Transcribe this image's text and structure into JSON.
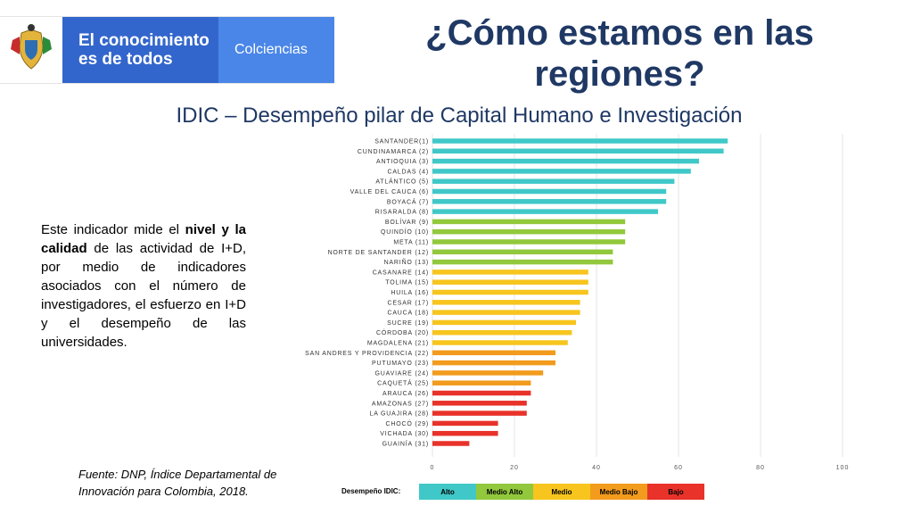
{
  "header": {
    "logo_line1": "El conocimiento",
    "logo_line2": "es de todos",
    "logo_brand": "Colciencias",
    "title": "¿Cómo estamos en las regiones?",
    "subtitle": "IDIC – Desempeño pilar de Capital Humano e Investigación"
  },
  "description": {
    "part1": "Este indicador mide el ",
    "bold1": "nivel y la calidad",
    "part2": " de las actividad de I+D, por medio de indicadores asociados con el número de investigadores, el esfuerzo en I+D y el desempeño de las universidades."
  },
  "source": "Fuente: DNP, Índice Departamental de Innovación para Colombia, 2018.",
  "legend": {
    "title": "Desempeño IDIC:",
    "items": [
      {
        "label": "Alto",
        "color": "#40c8c8"
      },
      {
        "label": "Medio Alto",
        "color": "#92c83c"
      },
      {
        "label": "Medio",
        "color": "#f7c51e"
      },
      {
        "label": "Medio Bajo",
        "color": "#f29b1d"
      },
      {
        "label": "Bajo",
        "color": "#e8322a"
      }
    ]
  },
  "chart_data": {
    "type": "bar",
    "orientation": "horizontal",
    "categories": [
      "SANTANDER(1)",
      "CUNDINAMARCA (2)",
      "ANTIOQUIA (3)",
      "CALDAS (4)",
      "ATLÁNTICO (5)",
      "VALLE DEL CAUCA (6)",
      "BOYACÁ (7)",
      "RISARALDA (8)",
      "BOLÍVAR (9)",
      "QUINDÍO (10)",
      "META (11)",
      "NORTE DE SANTANDER (12)",
      "NARIÑO (13)",
      "CASANARE (14)",
      "TOLIMA (15)",
      "HUILA (16)",
      "CESAR (17)",
      "CAUCA (18)",
      "SUCRE (19)",
      "CÓRDOBA (20)",
      "MAGDALENA (21)",
      "SAN ANDRES Y PROVIDENCIA (22)",
      "PUTUMAYO (23)",
      "GUAVIARE (24)",
      "CAQUETÁ (25)",
      "ARAUCA (26)",
      "AMAZONAS (27)",
      "LA GUAJIRA (28)",
      "CHOCÓ (29)",
      "VICHADA (30)",
      "GUAINÍA (31)"
    ],
    "values": [
      72,
      71,
      65,
      63,
      59,
      57,
      57,
      55,
      47,
      47,
      47,
      44,
      44,
      38,
      38,
      38,
      36,
      36,
      35,
      34,
      33,
      30,
      30,
      27,
      24,
      24,
      23,
      23,
      16,
      16,
      9
    ],
    "levels": [
      0,
      0,
      0,
      0,
      0,
      0,
      0,
      0,
      1,
      1,
      1,
      1,
      1,
      2,
      2,
      2,
      2,
      2,
      2,
      2,
      2,
      3,
      3,
      3,
      3,
      4,
      4,
      4,
      4,
      4,
      4
    ],
    "xlim": [
      0,
      100
    ],
    "xticks": [
      "0",
      "20",
      "40",
      "60",
      "80",
      "100"
    ],
    "grid": true
  }
}
